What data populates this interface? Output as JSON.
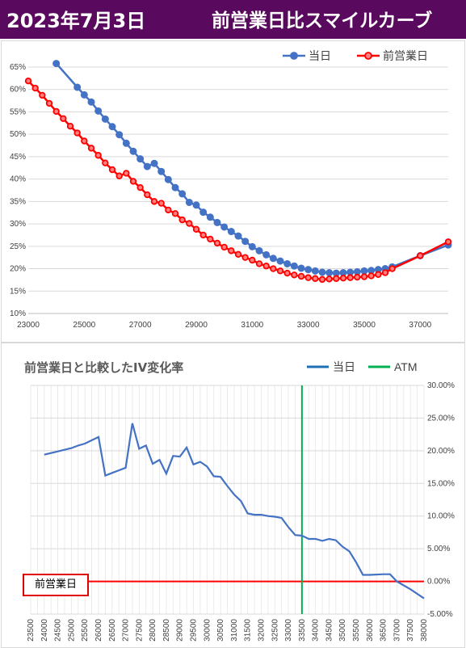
{
  "header": {
    "date": "2023年7月3日",
    "title": "前営業日比スマイルカーブ"
  },
  "chart_data": [
    {
      "type": "line",
      "title": "",
      "xlabel": "",
      "ylabel": "",
      "xlim": [
        23000,
        38000
      ],
      "ylim": [
        10,
        65
      ],
      "x_ticks": [
        "23000",
        "25000",
        "27000",
        "29000",
        "31000",
        "33000",
        "35000",
        "37000"
      ],
      "y_ticks": [
        "10%",
        "15%",
        "20%",
        "25%",
        "30%",
        "35%",
        "40%",
        "45%",
        "50%",
        "55%",
        "60%",
        "65%"
      ],
      "legend_position": "top-right",
      "grid": true,
      "series": [
        {
          "name": "当日",
          "color": "#4472c4",
          "points": [
            [
              24000,
              65.8
            ],
            [
              24750,
              60.5
            ],
            [
              25000,
              58.8
            ],
            [
              25250,
              57.2
            ],
            [
              25500,
              55.2
            ],
            [
              25750,
              53.4
            ],
            [
              26000,
              51.7
            ],
            [
              26250,
              49.9
            ],
            [
              26500,
              48.0
            ],
            [
              26750,
              46.2
            ],
            [
              27000,
              44.5
            ],
            [
              27250,
              42.8
            ],
            [
              27500,
              43.5
            ],
            [
              27750,
              41.7
            ],
            [
              28000,
              39.9
            ],
            [
              28250,
              38.1
            ],
            [
              28500,
              36.7
            ],
            [
              28750,
              34.8
            ],
            [
              29000,
              34.2
            ],
            [
              29250,
              32.6
            ],
            [
              29500,
              31.5
            ],
            [
              29750,
              30.3
            ],
            [
              30000,
              29.3
            ],
            [
              30250,
              28.3
            ],
            [
              30500,
              27.3
            ],
            [
              30750,
              26.1
            ],
            [
              31000,
              24.9
            ],
            [
              31250,
              24.0
            ],
            [
              31500,
              23.1
            ],
            [
              31750,
              22.3
            ],
            [
              32000,
              21.7
            ],
            [
              32250,
              21.1
            ],
            [
              32500,
              20.6
            ],
            [
              32750,
              20.1
            ],
            [
              33000,
              19.8
            ],
            [
              33250,
              19.5
            ],
            [
              33500,
              19.2
            ],
            [
              33750,
              19.1
            ],
            [
              34000,
              19.0
            ],
            [
              34250,
              19.1
            ],
            [
              34500,
              19.2
            ],
            [
              34750,
              19.3
            ],
            [
              35000,
              19.5
            ],
            [
              35250,
              19.6
            ],
            [
              35500,
              19.8
            ],
            [
              35750,
              20.0
            ],
            [
              36000,
              20.4
            ],
            [
              37000,
              22.9
            ],
            [
              38000,
              25.3
            ]
          ]
        },
        {
          "name": "前営業日",
          "color": "#ff0000",
          "points": [
            [
              23000,
              61.9
            ],
            [
              23250,
              60.3
            ],
            [
              23500,
              58.7
            ],
            [
              23750,
              56.9
            ],
            [
              24000,
              55.1
            ],
            [
              24250,
              53.5
            ],
            [
              24500,
              51.8
            ],
            [
              24750,
              50.3
            ],
            [
              25000,
              48.5
            ],
            [
              25250,
              46.9
            ],
            [
              25500,
              45.3
            ],
            [
              25750,
              43.6
            ],
            [
              26000,
              42.1
            ],
            [
              26250,
              40.7
            ],
            [
              26500,
              41.3
            ],
            [
              26750,
              39.5
            ],
            [
              27000,
              38.1
            ],
            [
              27250,
              36.5
            ],
            [
              27500,
              35.0
            ],
            [
              27750,
              34.6
            ],
            [
              28000,
              33.1
            ],
            [
              28250,
              32.3
            ],
            [
              28500,
              30.9
            ],
            [
              28750,
              30.1
            ],
            [
              29000,
              28.8
            ],
            [
              29250,
              27.5
            ],
            [
              29500,
              26.6
            ],
            [
              29750,
              25.7
            ],
            [
              30000,
              24.8
            ],
            [
              30250,
              24.0
            ],
            [
              30500,
              23.2
            ],
            [
              30750,
              22.5
            ],
            [
              31000,
              21.9
            ],
            [
              31250,
              21.1
            ],
            [
              31500,
              20.6
            ],
            [
              31750,
              20.0
            ],
            [
              32000,
              19.5
            ],
            [
              32250,
              19.0
            ],
            [
              32500,
              18.6
            ],
            [
              32750,
              18.3
            ],
            [
              33000,
              18.0
            ],
            [
              33250,
              17.8
            ],
            [
              33500,
              17.6
            ],
            [
              33750,
              17.7
            ],
            [
              34000,
              17.8
            ],
            [
              34250,
              17.9
            ],
            [
              34500,
              18.0
            ],
            [
              34750,
              18.1
            ],
            [
              35000,
              18.2
            ],
            [
              35250,
              18.4
            ],
            [
              35500,
              18.7
            ],
            [
              35750,
              19.1
            ],
            [
              36000,
              20.0
            ],
            [
              37000,
              22.9
            ],
            [
              38000,
              26.0
            ]
          ]
        }
      ]
    },
    {
      "type": "line",
      "title": "前営業日と比較したIV変化率",
      "xlabel": "",
      "ylabel": "",
      "ylim": [
        -5,
        30
      ],
      "y_ticks": [
        "30.00%",
        "25.00%",
        "20.00%",
        "15.00%",
        "10.00%",
        "5.00%",
        "0.00%",
        "-5.00%"
      ],
      "categories": [
        "23500",
        "24000",
        "24500",
        "25000",
        "25500",
        "26000",
        "26500",
        "27000",
        "27500",
        "28000",
        "28500",
        "29000",
        "29500",
        "30000",
        "30500",
        "31000",
        "31500",
        "32000",
        "32500",
        "33000",
        "33500",
        "34000",
        "34500",
        "35000",
        "35500",
        "36000",
        "36500",
        "37000",
        "37500",
        "38000"
      ],
      "legend_position": "top-right",
      "grid": true,
      "series": [
        {
          "name": "当日",
          "color": "#4472c4",
          "points": [
            [
              24000,
              19.4
            ],
            [
              24500,
              19.9
            ],
            [
              25000,
              20.4
            ],
            [
              25250,
              20.8
            ],
            [
              25500,
              21.1
            ],
            [
              25750,
              21.6
            ],
            [
              26000,
              22.1
            ],
            [
              26250,
              16.2
            ],
            [
              26500,
              16.6
            ],
            [
              26750,
              17.0
            ],
            [
              27000,
              17.4
            ],
            [
              27250,
              24.2
            ],
            [
              27500,
              20.3
            ],
            [
              27750,
              20.8
            ],
            [
              28000,
              18.0
            ],
            [
              28250,
              18.6
            ],
            [
              28500,
              16.5
            ],
            [
              28750,
              19.2
            ],
            [
              29000,
              19.1
            ],
            [
              29250,
              20.5
            ],
            [
              29500,
              17.9
            ],
            [
              29750,
              18.3
            ],
            [
              30000,
              17.6
            ],
            [
              30250,
              16.1
            ],
            [
              30500,
              16.0
            ],
            [
              30750,
              14.6
            ],
            [
              31000,
              13.3
            ],
            [
              31250,
              12.3
            ],
            [
              31500,
              10.4
            ],
            [
              31750,
              10.2
            ],
            [
              32000,
              10.2
            ],
            [
              32250,
              10.0
            ],
            [
              32500,
              9.9
            ],
            [
              32750,
              9.7
            ],
            [
              33000,
              8.3
            ],
            [
              33250,
              7.1
            ],
            [
              33500,
              7.0
            ],
            [
              33750,
              6.5
            ],
            [
              34000,
              6.5
            ],
            [
              34250,
              6.2
            ],
            [
              34500,
              6.5
            ],
            [
              34750,
              6.3
            ],
            [
              35000,
              5.3
            ],
            [
              35250,
              4.6
            ],
            [
              35500,
              2.9
            ],
            [
              35750,
              1.0
            ],
            [
              36000,
              1.0
            ],
            [
              36500,
              1.1
            ],
            [
              36750,
              1.1
            ],
            [
              37000,
              0.0
            ],
            [
              37500,
              -1.2
            ],
            [
              38000,
              -2.6
            ]
          ]
        },
        {
          "name": "ATM",
          "color": "#00b050",
          "x": 33500
        }
      ],
      "reference_line": {
        "label": "前営業日",
        "value": 0,
        "color": "#ff0000"
      }
    }
  ]
}
